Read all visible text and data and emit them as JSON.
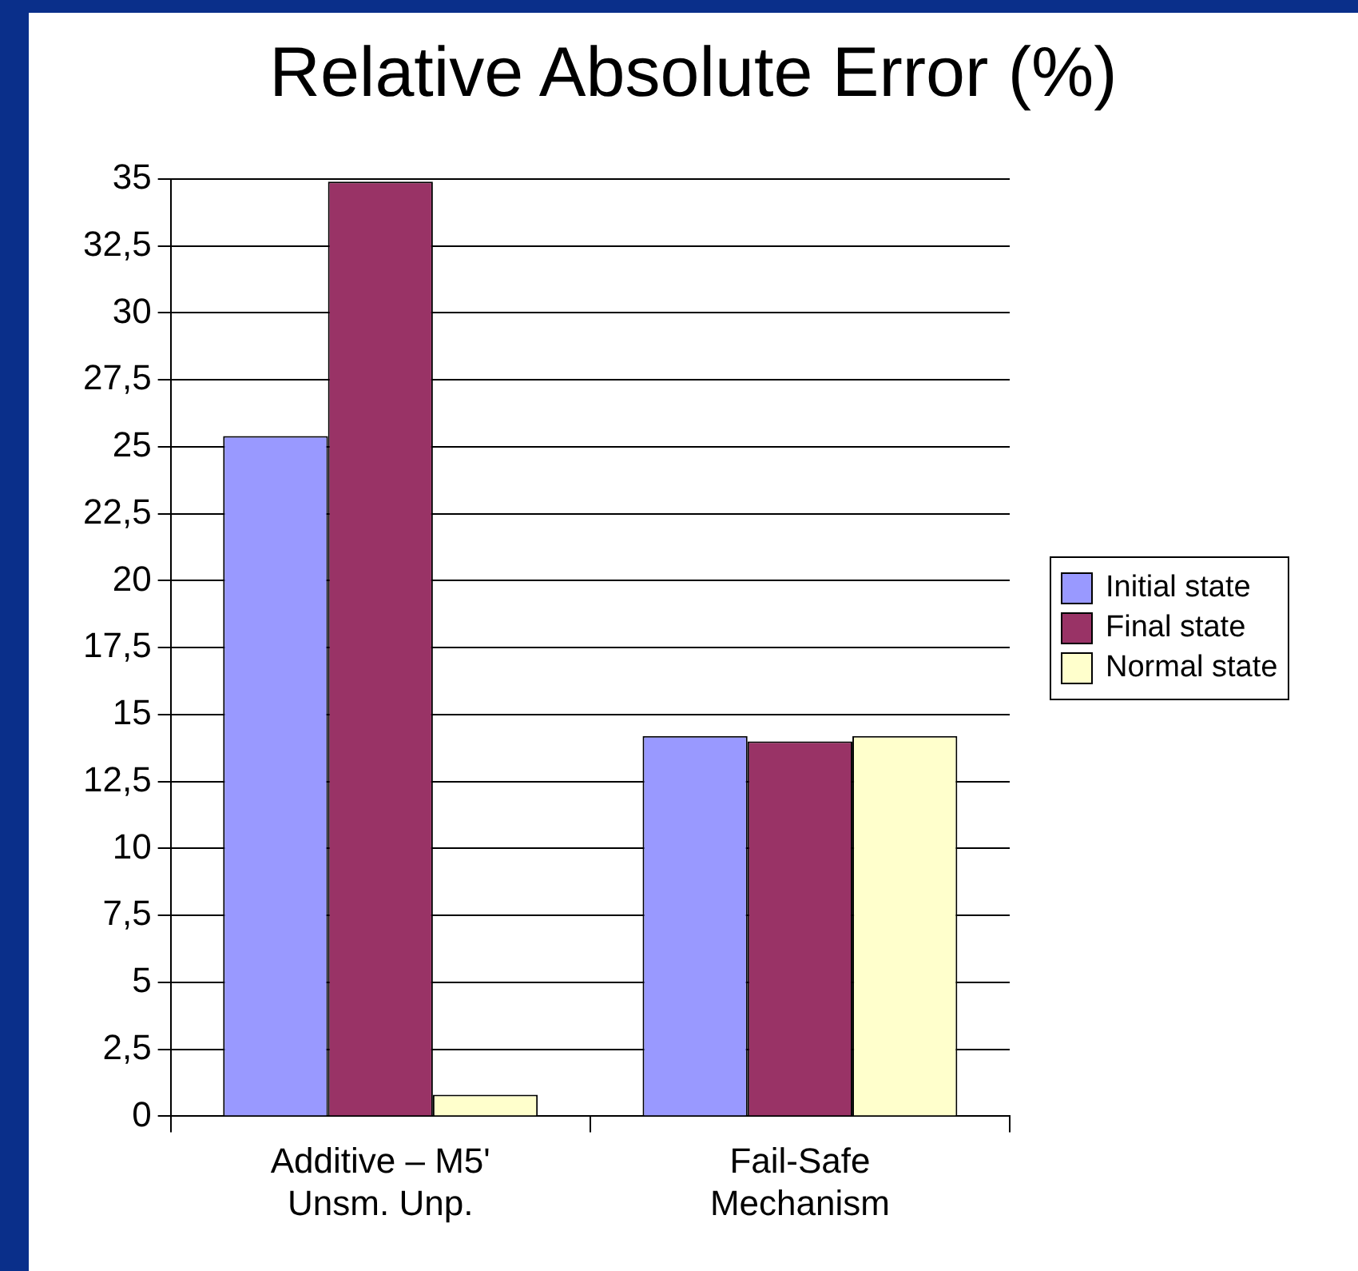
{
  "chart_data": {
    "type": "bar",
    "title": "Relative Absolute Error (%)",
    "categories": [
      "Additive – M5'\nUnsm. Unp.",
      "Fail-Safe\nMechanism"
    ],
    "series": [
      {
        "name": "Initial state",
        "color": "#9999ff",
        "values": [
          25.4,
          14.2
        ]
      },
      {
        "name": "Final state",
        "color": "#993366",
        "values": [
          34.9,
          14.0
        ]
      },
      {
        "name": "Normal state",
        "color": "#ffffcc",
        "values": [
          0.8,
          14.2
        ]
      }
    ],
    "ylim": [
      0,
      35
    ],
    "yticks": [
      0,
      {
        "value": 2.5,
        "label": "2,5"
      },
      5,
      {
        "value": 7.5,
        "label": "7,5"
      },
      10,
      {
        "value": 12.5,
        "label": "12,5"
      },
      15,
      {
        "value": 17.5,
        "label": "17,5"
      },
      20,
      {
        "value": 22.5,
        "label": "22,5"
      },
      25,
      {
        "value": 27.5,
        "label": "27,5"
      },
      30,
      {
        "value": 32.5,
        "label": "32,5"
      },
      35
    ],
    "grid": "y",
    "legend": "right"
  }
}
